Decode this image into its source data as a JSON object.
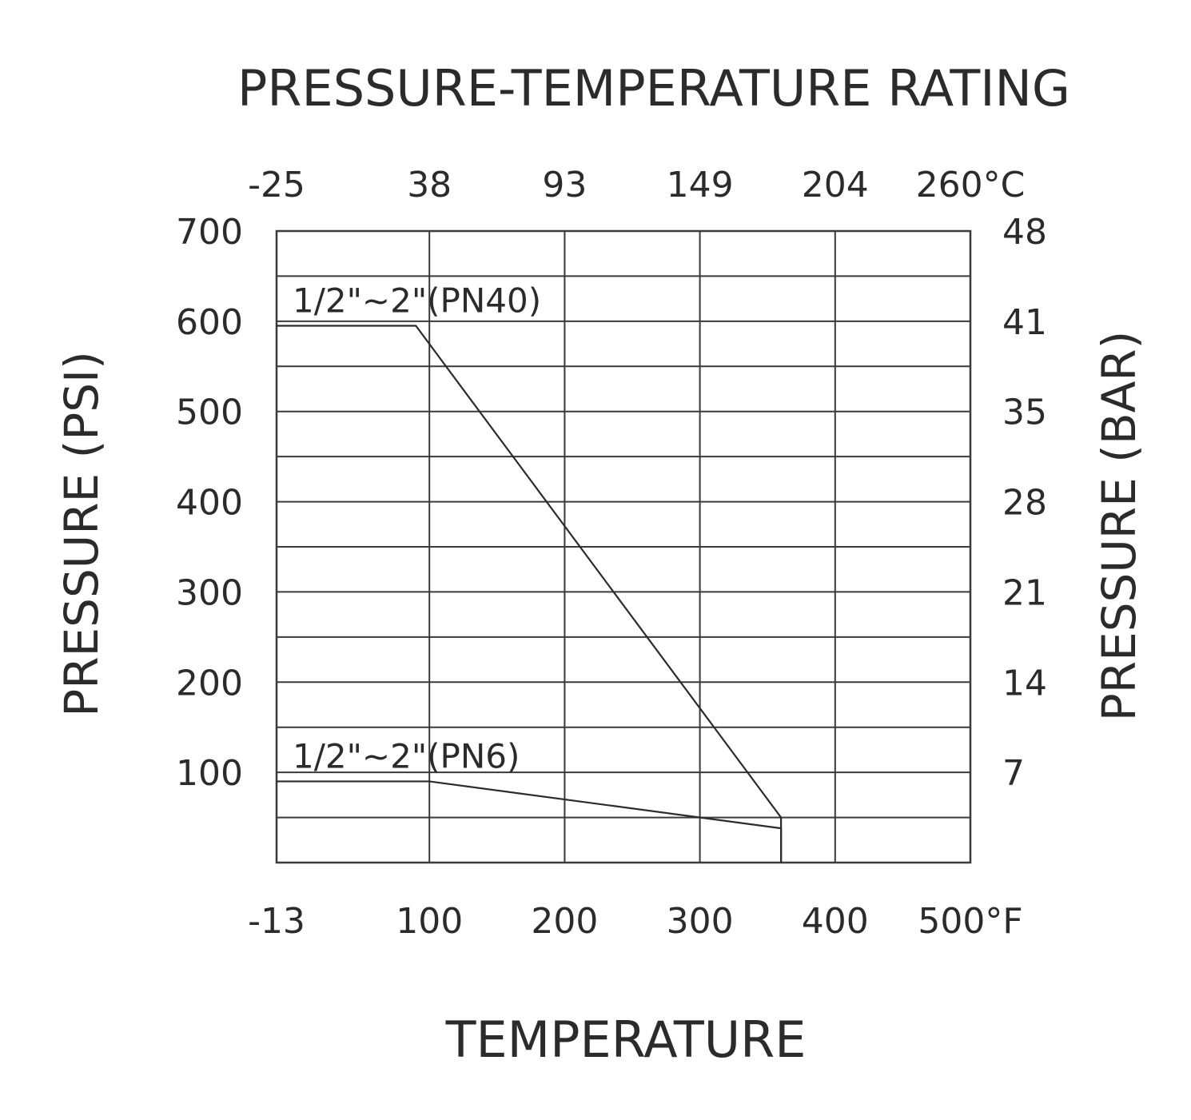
{
  "chart_data": {
    "type": "line",
    "title": "PRESSURE-TEMPERATURE RATING",
    "xlabel": "TEMPERATURE",
    "ylabel_left": "PRESSURE (PSI)",
    "ylabel_right": "PRESSURE (BAR)",
    "x_bottom_ticks": [
      "-13",
      "100",
      "200",
      "300",
      "400",
      "500°F"
    ],
    "x_top_ticks": [
      "-25",
      "38",
      "93",
      "149",
      "204",
      "260°C"
    ],
    "y_left_ticks": [
      "100",
      "200",
      "300",
      "400",
      "500",
      "600",
      "700"
    ],
    "y_right_ticks": [
      "7",
      "14",
      "21",
      "28",
      "35",
      "41",
      "48"
    ],
    "x_unit": "°F",
    "xlim": [
      -13,
      500
    ],
    "ylim": [
      0,
      700
    ],
    "grid": true,
    "series": [
      {
        "name": "1/2\"~2\"(PN40)",
        "x": [
          -13,
          90,
          360,
          360
        ],
        "y": [
          595,
          595,
          50,
          0
        ]
      },
      {
        "name": "1/2\"~2\"(PN6)",
        "x": [
          -13,
          100,
          360,
          360
        ],
        "y": [
          90,
          90,
          38,
          0
        ]
      }
    ]
  }
}
